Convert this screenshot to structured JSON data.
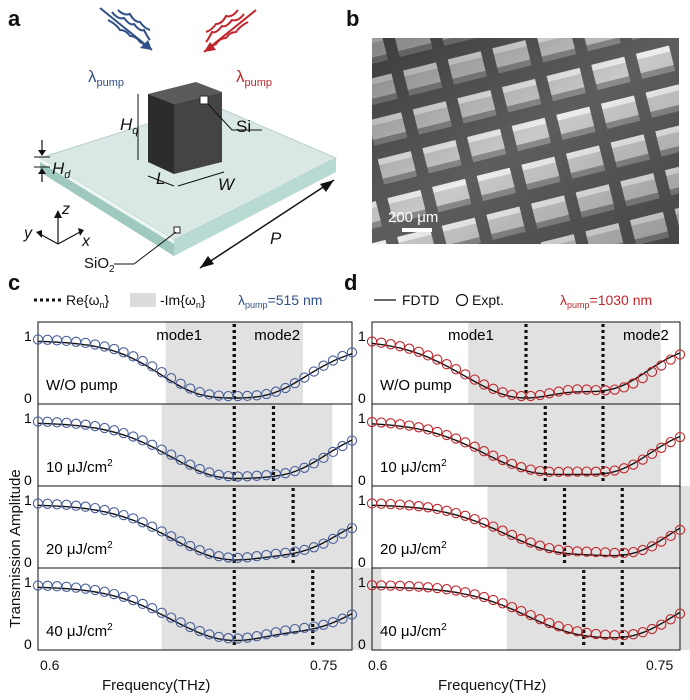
{
  "panel_labels": {
    "a": "a",
    "b": "b",
    "c": "c",
    "d": "d"
  },
  "schematic": {
    "lambda_blue": {
      "main": "λ",
      "sub": "pump"
    },
    "lambda_red": {
      "main": "λ",
      "sub": "pump"
    },
    "hq": {
      "main": "H",
      "sub": "q"
    },
    "hd": {
      "main": "H",
      "sub": "d"
    },
    "L": "L",
    "W": "W",
    "Si": "Si",
    "P": "P",
    "z": "z",
    "y": "y",
    "x": "x",
    "sio2": {
      "main": "SiO",
      "sub": "2"
    },
    "colors": {
      "blue": "#2f4f86",
      "red": "#c0262c",
      "glass": "#cfe2df",
      "block": "#3a3a3a"
    }
  },
  "sem": {
    "scalebar": "200 μm"
  },
  "chart_data": [
    {
      "type": "line",
      "panel": "c",
      "legend": {
        "re": "Re{ω",
        "re_sub": "n",
        "re_close": "}",
        "im": "-Im{ω",
        "im_sub": "n",
        "im_close": "}",
        "lam_main": "λ",
        "lam_sub": "pump",
        "lam_value": "=515 nm",
        "lam_color": "#2f4f86"
      },
      "xlabel": "Frequency(THz)",
      "ylabel": "Transmission Amplitude",
      "xlim": [
        0.6,
        0.76
      ],
      "x_tick_labels": [
        "0.6",
        "0.75"
      ],
      "y_tick_labels": [
        "0",
        "1"
      ],
      "marker_color": "#4a5f9a",
      "mode_labels": [
        "mode1",
        "mode2"
      ],
      "rows": [
        {
          "label": "W/O pump",
          "unit_sup": "",
          "m1": 0.7,
          "w1": 0.035,
          "m2": 0.7,
          "w2": 0.03,
          "d1": 0.0,
          "d2": 0.18,
          "fdtd_d2": 0.24
        },
        {
          "label": "10 μJ/cm",
          "unit_sup": "2",
          "m1": 0.7,
          "w1": 0.037,
          "m2": 0.72,
          "w2": 0.03,
          "d1": 0.05,
          "d2": 0.28,
          "fdtd_d2": 0.3
        },
        {
          "label": "20 μJ/cm",
          "unit_sup": "2",
          "m1": 0.7,
          "w1": 0.037,
          "m2": 0.73,
          "w2": 0.03,
          "d1": 0.05,
          "d2": 0.38,
          "fdtd_d2": 0.4
        },
        {
          "label": "40 μJ/cm",
          "unit_sup": "2",
          "m1": 0.7,
          "w1": 0.037,
          "m2": 0.74,
          "w2": 0.035,
          "d1": 0.07,
          "d2": 0.48,
          "fdtd_d2": 0.48
        }
      ]
    },
    {
      "type": "line",
      "panel": "d",
      "legend": {
        "fdtd": "FDTD",
        "expt": "Expt.",
        "lam_main": "λ",
        "lam_sub": "pump",
        "lam_value": "=1030 nm",
        "lam_color": "#c0262c"
      },
      "xlabel": "Frequency(THz)",
      "xlim": [
        0.6,
        0.76
      ],
      "x_tick_labels": [
        "0.6",
        "0.75"
      ],
      "y_tick_labels": [
        "0",
        "1"
      ],
      "marker_color": "#c0262c",
      "mode_labels": [
        "mode1",
        "mode2"
      ],
      "rows": [
        {
          "label": "W/O pump",
          "unit_sup": "",
          "m1": 0.68,
          "w1": 0.03,
          "m2": 0.72,
          "w2": 0.03,
          "d1": 0.0,
          "d2": 0.18,
          "fdtd_d2": 0.24
        },
        {
          "label": "10 μJ/cm",
          "unit_sup": "2",
          "m1": 0.69,
          "w1": 0.037,
          "m2": 0.72,
          "w2": 0.03,
          "d1": 0.15,
          "d2": 0.25,
          "fdtd_d2": 0.25
        },
        {
          "label": "20 μJ/cm",
          "unit_sup": "2",
          "m1": 0.7,
          "w1": 0.04,
          "m2": 0.73,
          "w2": 0.04,
          "d1": 0.22,
          "d2": 0.25,
          "fdtd_d2": 0.25
        },
        {
          "label": "40 μJ/cm",
          "unit_sup": "2",
          "m1": 0.71,
          "w1": 0.04,
          "m2": 0.73,
          "w2": 0.04,
          "d1": 0.28,
          "d2": 0.3,
          "fdtd_d2": 0.3
        }
      ]
    }
  ]
}
